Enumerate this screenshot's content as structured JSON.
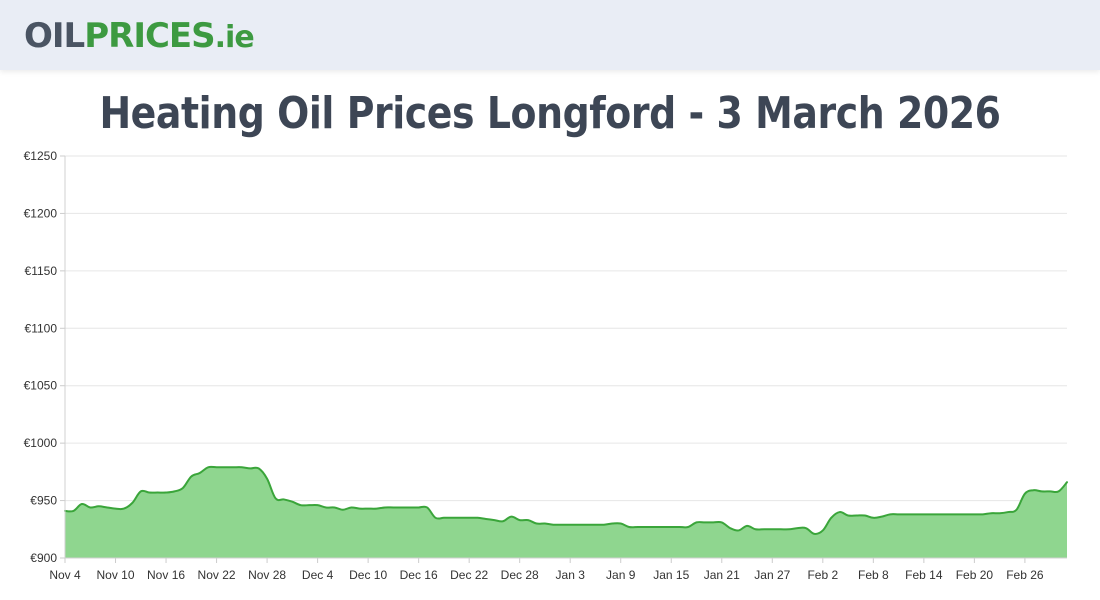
{
  "header": {
    "logo_part1": "OIL",
    "logo_part2": "PRICES",
    "logo_part3": ".ie"
  },
  "colors": {
    "line": "#3aa53a",
    "fill": "#8fd68f",
    "logo_dark": "#4a5463",
    "logo_green": "#3d9a41",
    "title": "#3d4655"
  },
  "chart_data": {
    "type": "area",
    "title": "Heating Oil Prices Longford - 3 March 2026",
    "xlabel": "",
    "ylabel": "",
    "ylim": [
      900,
      1250
    ],
    "y_ticks": [
      "€900",
      "€950",
      "€1000",
      "€1050",
      "€1100",
      "€1150",
      "€1200",
      "€1250"
    ],
    "y_tick_values": [
      900,
      950,
      1000,
      1050,
      1100,
      1150,
      1200,
      1250
    ],
    "x_range_days": [
      0,
      119
    ],
    "x_tick_labels": [
      "Nov 4",
      "Nov 10",
      "Nov 16",
      "Nov 22",
      "Nov 28",
      "Dec 4",
      "Dec 10",
      "Dec 16",
      "Dec 22",
      "Dec 28",
      "Jan 3",
      "Jan 9",
      "Jan 15",
      "Jan 21",
      "Jan 27",
      "Feb 2",
      "Feb 8",
      "Feb 14",
      "Feb 20",
      "Feb 26"
    ],
    "grid": true,
    "legend": "none",
    "series": [
      {
        "x": [
          0,
          1,
          2,
          3,
          4,
          5,
          6,
          7,
          8,
          9,
          10,
          11,
          12,
          13,
          14,
          15,
          16,
          17,
          18,
          19,
          20,
          21,
          22,
          23,
          24,
          25,
          26,
          27,
          28,
          29,
          30,
          31,
          32,
          33,
          34,
          35,
          36,
          37,
          38,
          39,
          40,
          41,
          42,
          43,
          44,
          45,
          46,
          47,
          48,
          49,
          50,
          51,
          52,
          53,
          54,
          55,
          56,
          57,
          58,
          59,
          60,
          61,
          62,
          63,
          64,
          65,
          66,
          67,
          68,
          69,
          70,
          71,
          72,
          73,
          74,
          75,
          76,
          77,
          78,
          79,
          80,
          81,
          82,
          83,
          84,
          85,
          86,
          87,
          88,
          89,
          90,
          91,
          92,
          93,
          94,
          95,
          96,
          97,
          98,
          99,
          100,
          101,
          102,
          103,
          104,
          105,
          106,
          107,
          108,
          109,
          110,
          111,
          112,
          113,
          114,
          115,
          116,
          117,
          118,
          119
        ],
        "values": [
          941,
          941,
          947,
          944,
          945,
          944,
          943,
          943,
          948,
          958,
          957,
          957,
          957,
          958,
          961,
          971,
          974,
          979,
          979,
          979,
          979,
          979,
          978,
          978,
          969,
          952,
          951,
          949,
          946,
          946,
          946,
          944,
          944,
          942,
          944,
          943,
          943,
          943,
          944,
          944,
          944,
          944,
          944,
          944,
          935,
          935,
          935,
          935,
          935,
          935,
          934,
          933,
          932,
          936,
          933,
          933,
          930,
          930,
          929,
          929,
          929,
          929,
          929,
          929,
          929,
          930,
          930,
          927,
          927,
          927,
          927,
          927,
          927,
          927,
          927,
          931,
          931,
          931,
          931,
          926,
          924,
          928,
          925,
          925,
          925,
          925,
          925,
          926,
          926,
          921,
          924,
          935,
          940,
          937,
          937,
          937,
          935,
          936,
          938,
          938,
          938,
          938,
          938,
          938,
          938,
          938,
          938,
          938,
          938,
          938,
          939,
          939,
          940,
          942,
          956,
          959,
          958,
          958,
          958,
          966
        ]
      }
    ]
  }
}
